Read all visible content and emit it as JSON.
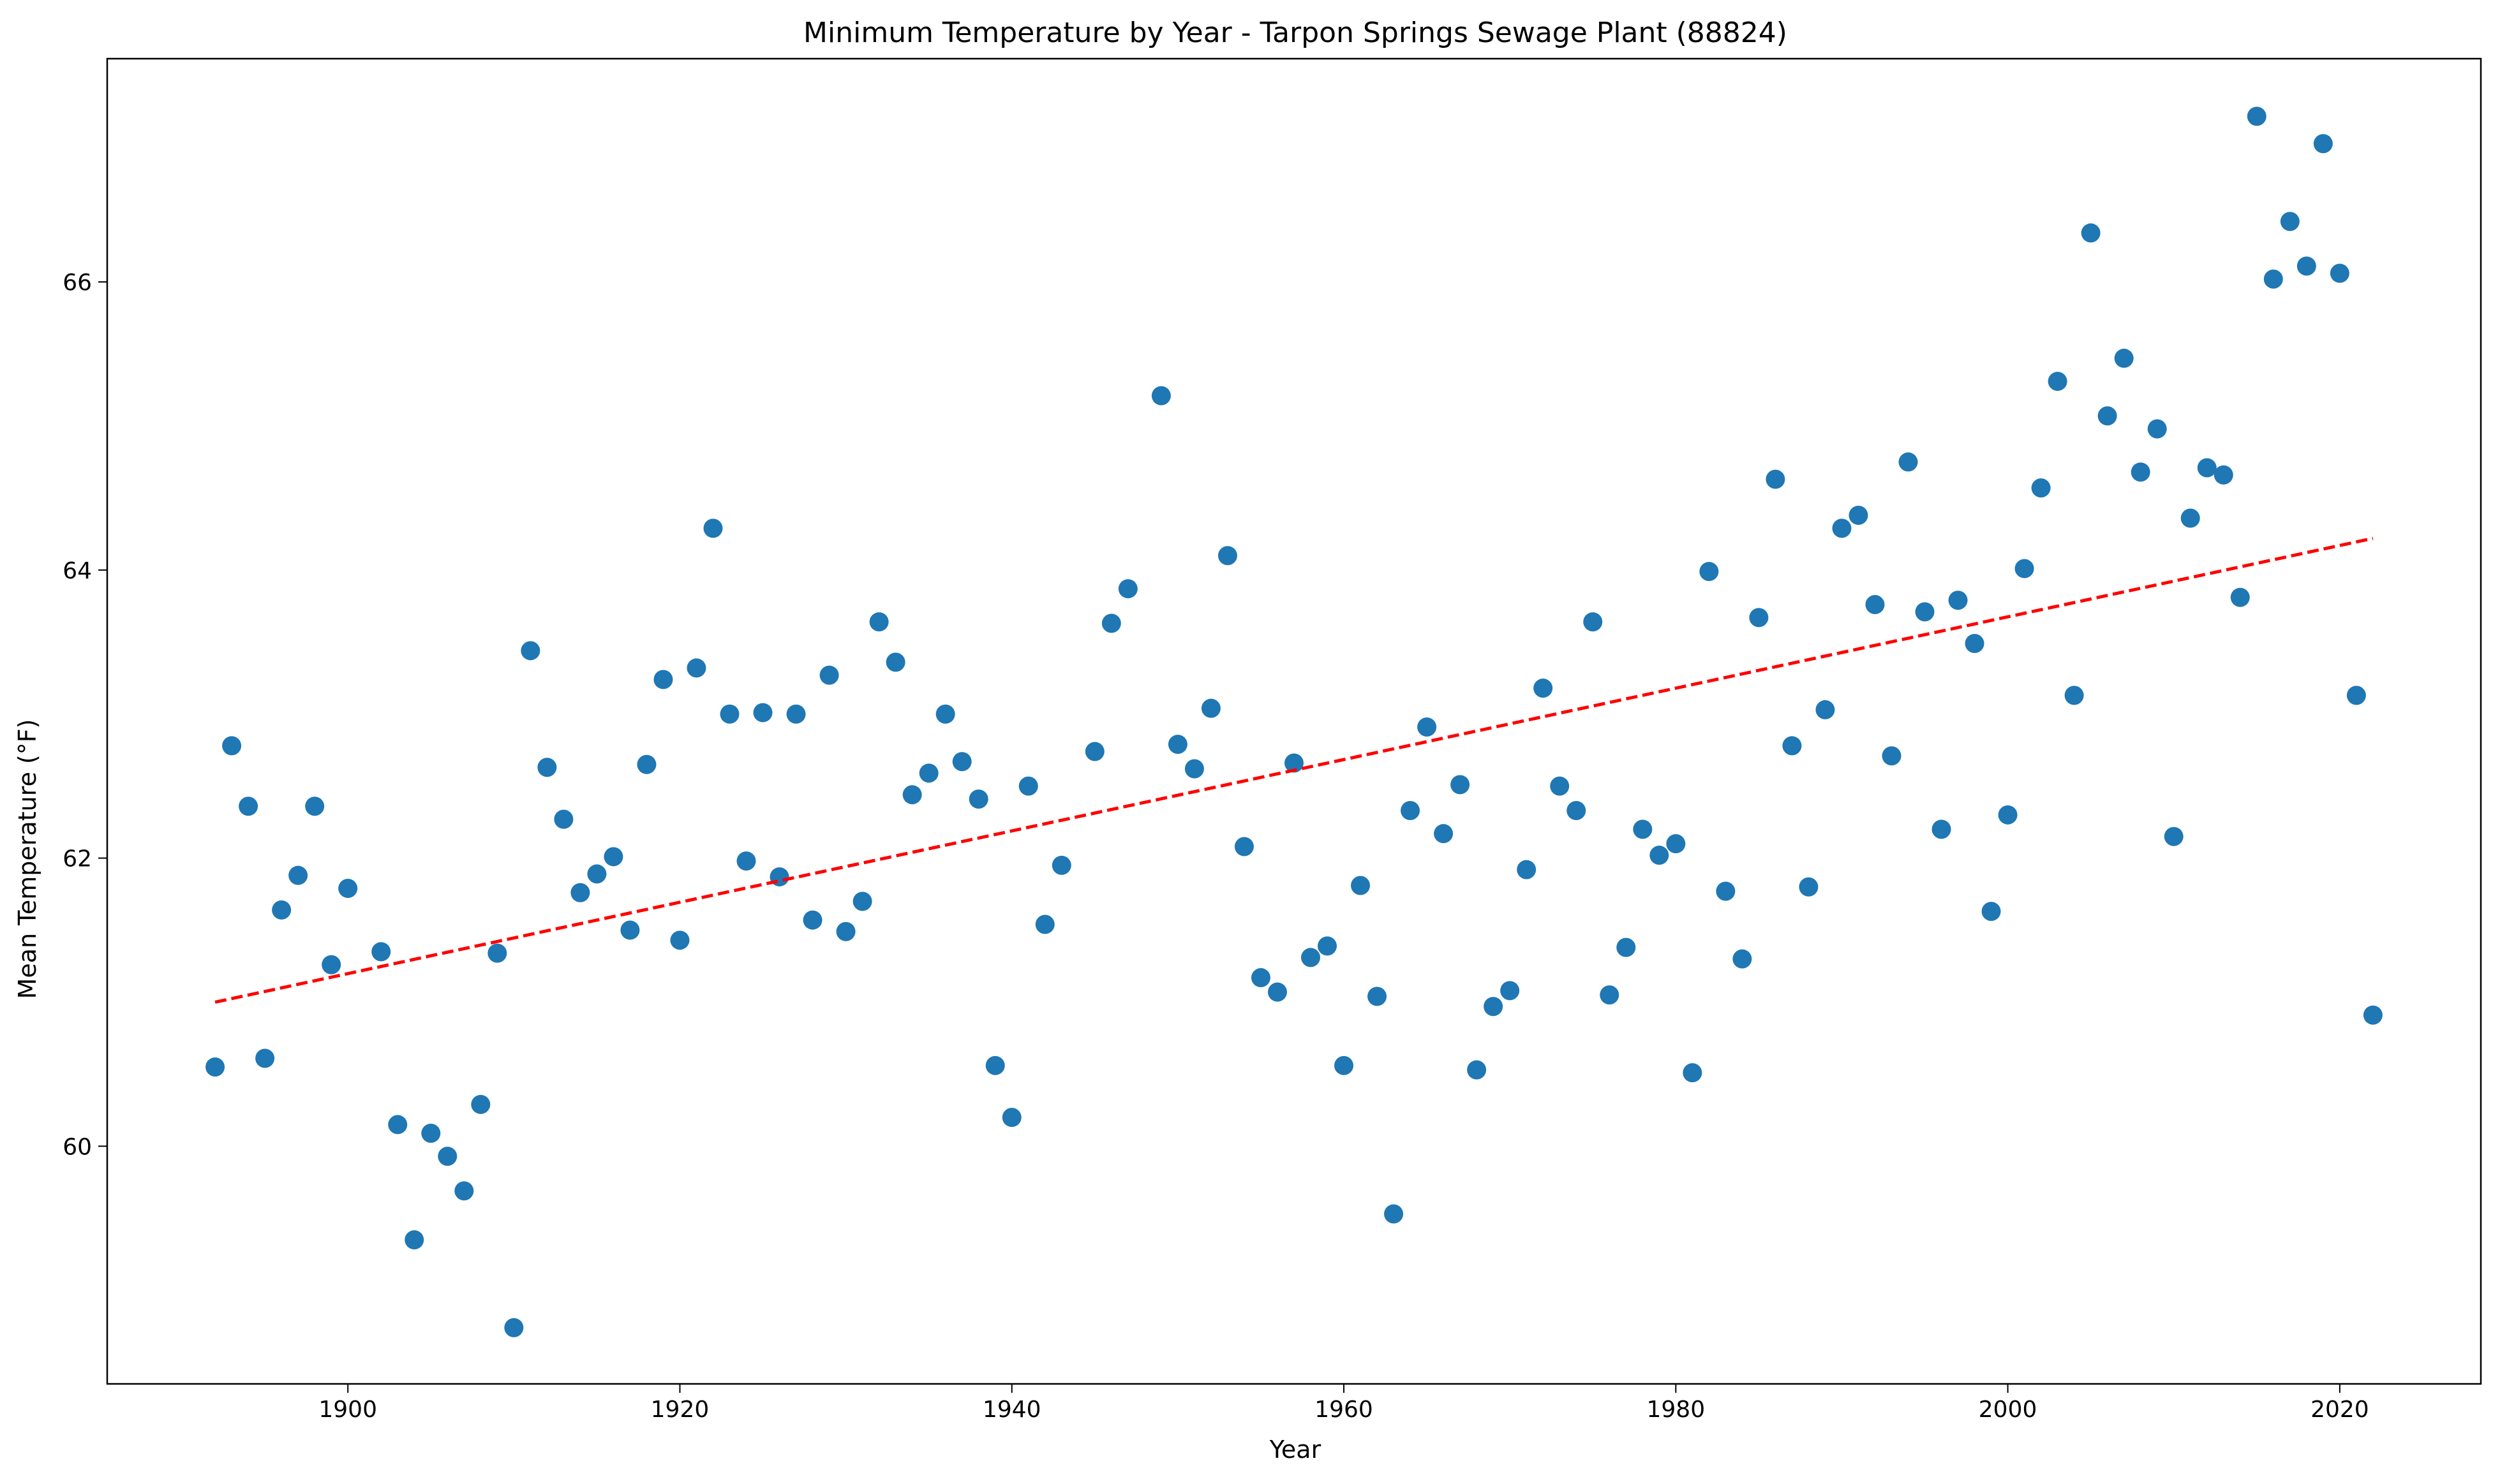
{
  "chart_data": {
    "type": "scatter",
    "title": "Minimum Temperature by Year - Tarpon Springs Sewage Plant (88824)",
    "xlabel": "Year",
    "ylabel": "Mean Temperature (°F)",
    "xlim": [
      1885.5,
      2028.5
    ],
    "ylim": [
      58.35,
      67.55
    ],
    "xticks": [
      1900,
      1920,
      1940,
      1960,
      1980,
      2000,
      2020
    ],
    "yticks": [
      60,
      62,
      64,
      66
    ],
    "grid": false,
    "legend": "none",
    "colors": {
      "points": "#1f77b4",
      "trend": "#ff0000"
    },
    "series": [
      {
        "x": [
          1892,
          1893,
          1894,
          1895,
          1896,
          1897,
          1898,
          1899,
          1900,
          1902,
          1903,
          1904,
          1905,
          1906,
          1907,
          1908,
          1909,
          1910,
          1911,
          1912,
          1913,
          1914,
          1915,
          1916,
          1917,
          1918,
          1919,
          1920,
          1921,
          1922,
          1923,
          1924,
          1925,
          1926,
          1927,
          1928,
          1929,
          1930,
          1931,
          1932,
          1933,
          1934,
          1935,
          1936,
          1937,
          1938,
          1939,
          1940,
          1941,
          1942,
          1943,
          1945,
          1946,
          1947,
          1949,
          1950,
          1951,
          1952,
          1953,
          1954,
          1955,
          1956,
          1957,
          1958,
          1959,
          1960,
          1961,
          1962,
          1963,
          1964,
          1965,
          1966,
          1967,
          1968,
          1969,
          1970,
          1971,
          1972,
          1973,
          1974,
          1975,
          1976,
          1977,
          1978,
          1979,
          1980,
          1981,
          1982,
          1983,
          1984,
          1985,
          1986,
          1987,
          1988,
          1989,
          1990,
          1991,
          1992,
          1993,
          1994,
          1995,
          1996,
          1997,
          1998,
          1999,
          2000,
          2001,
          2002,
          2003,
          2004,
          2005,
          2006,
          2007,
          2008,
          2009,
          2010,
          2011,
          2012,
          2013,
          2014,
          2015,
          2016,
          2017,
          2018,
          2019,
          2020,
          2021,
          2022
        ],
        "y": [
          60.55,
          62.78,
          62.36,
          60.61,
          61.64,
          61.88,
          62.36,
          61.26,
          61.79,
          61.35,
          60.15,
          59.35,
          60.09,
          59.93,
          59.69,
          60.29,
          61.34,
          58.74,
          63.44,
          62.63,
          62.27,
          61.76,
          61.89,
          62.01,
          61.5,
          62.65,
          63.24,
          61.43,
          63.32,
          64.29,
          63.0,
          61.98,
          63.01,
          61.87,
          63.0,
          61.57,
          63.27,
          61.49,
          61.7,
          63.64,
          63.36,
          62.44,
          62.59,
          63.0,
          62.67,
          62.41,
          60.56,
          60.2,
          62.5,
          61.54,
          61.95,
          62.74,
          63.63,
          63.87,
          65.21,
          62.79,
          62.62,
          63.04,
          64.1,
          62.08,
          61.17,
          61.07,
          62.66,
          61.31,
          61.39,
          60.56,
          61.81,
          61.04,
          59.53,
          62.33,
          62.91,
          62.17,
          62.51,
          60.53,
          60.97,
          61.08,
          61.92,
          63.18,
          62.5,
          62.33,
          63.64,
          61.05,
          61.38,
          62.2,
          62.02,
          62.1,
          60.51,
          63.99,
          61.77,
          61.3,
          63.67,
          64.63,
          62.78,
          61.8,
          63.03,
          64.29,
          64.38,
          63.76,
          62.71,
          64.75,
          63.71,
          62.2,
          63.79,
          63.49,
          61.63,
          62.3,
          64.01,
          64.57,
          65.31,
          63.13,
          66.34,
          65.07,
          65.47,
          64.68,
          64.98,
          62.15,
          64.36,
          64.71,
          64.66,
          63.81,
          67.15,
          66.02,
          66.42,
          66.11,
          66.96,
          66.06,
          63.13,
          60.91
        ]
      }
    ],
    "trendline": {
      "x": [
        1892,
        2022
      ],
      "y": [
        61.0,
        64.22
      ]
    }
  }
}
